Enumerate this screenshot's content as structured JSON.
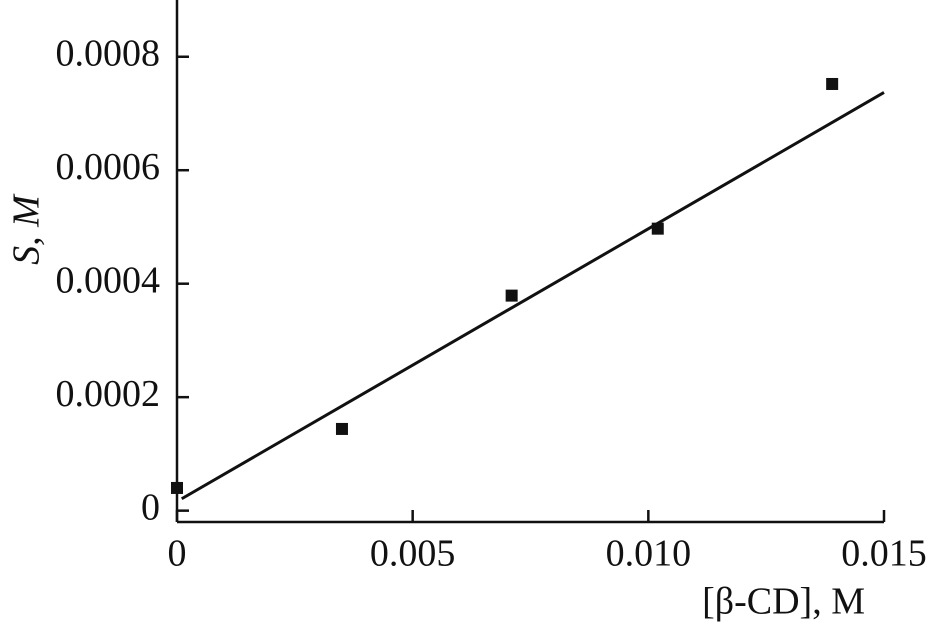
{
  "chart_data": {
    "type": "scatter",
    "x_label": "[β-CD], M",
    "y_label": "S, M",
    "x": [
      0,
      0.0035,
      0.0071,
      0.0102,
      0.0139
    ],
    "series": [
      {
        "color": "#111111",
        "values": [
          4e-05,
          0.000144,
          0.000379,
          0.000497,
          0.000752
        ]
      }
    ],
    "fit": {
      "color": "#111111",
      "x": [
        0.0001,
        0.015
      ],
      "values": [
        2.1e-05,
        0.000737
      ]
    },
    "xlim": [
      0,
      0.015
    ],
    "ylim": [
      -2e-05,
      0.0009
    ],
    "xticks": [
      0,
      0.005,
      {
        "value": 0.01,
        "label": "0.010"
      },
      0.015
    ],
    "yticks": [
      0,
      0.0002,
      0.0004,
      0.0006,
      0.0008
    ]
  }
}
